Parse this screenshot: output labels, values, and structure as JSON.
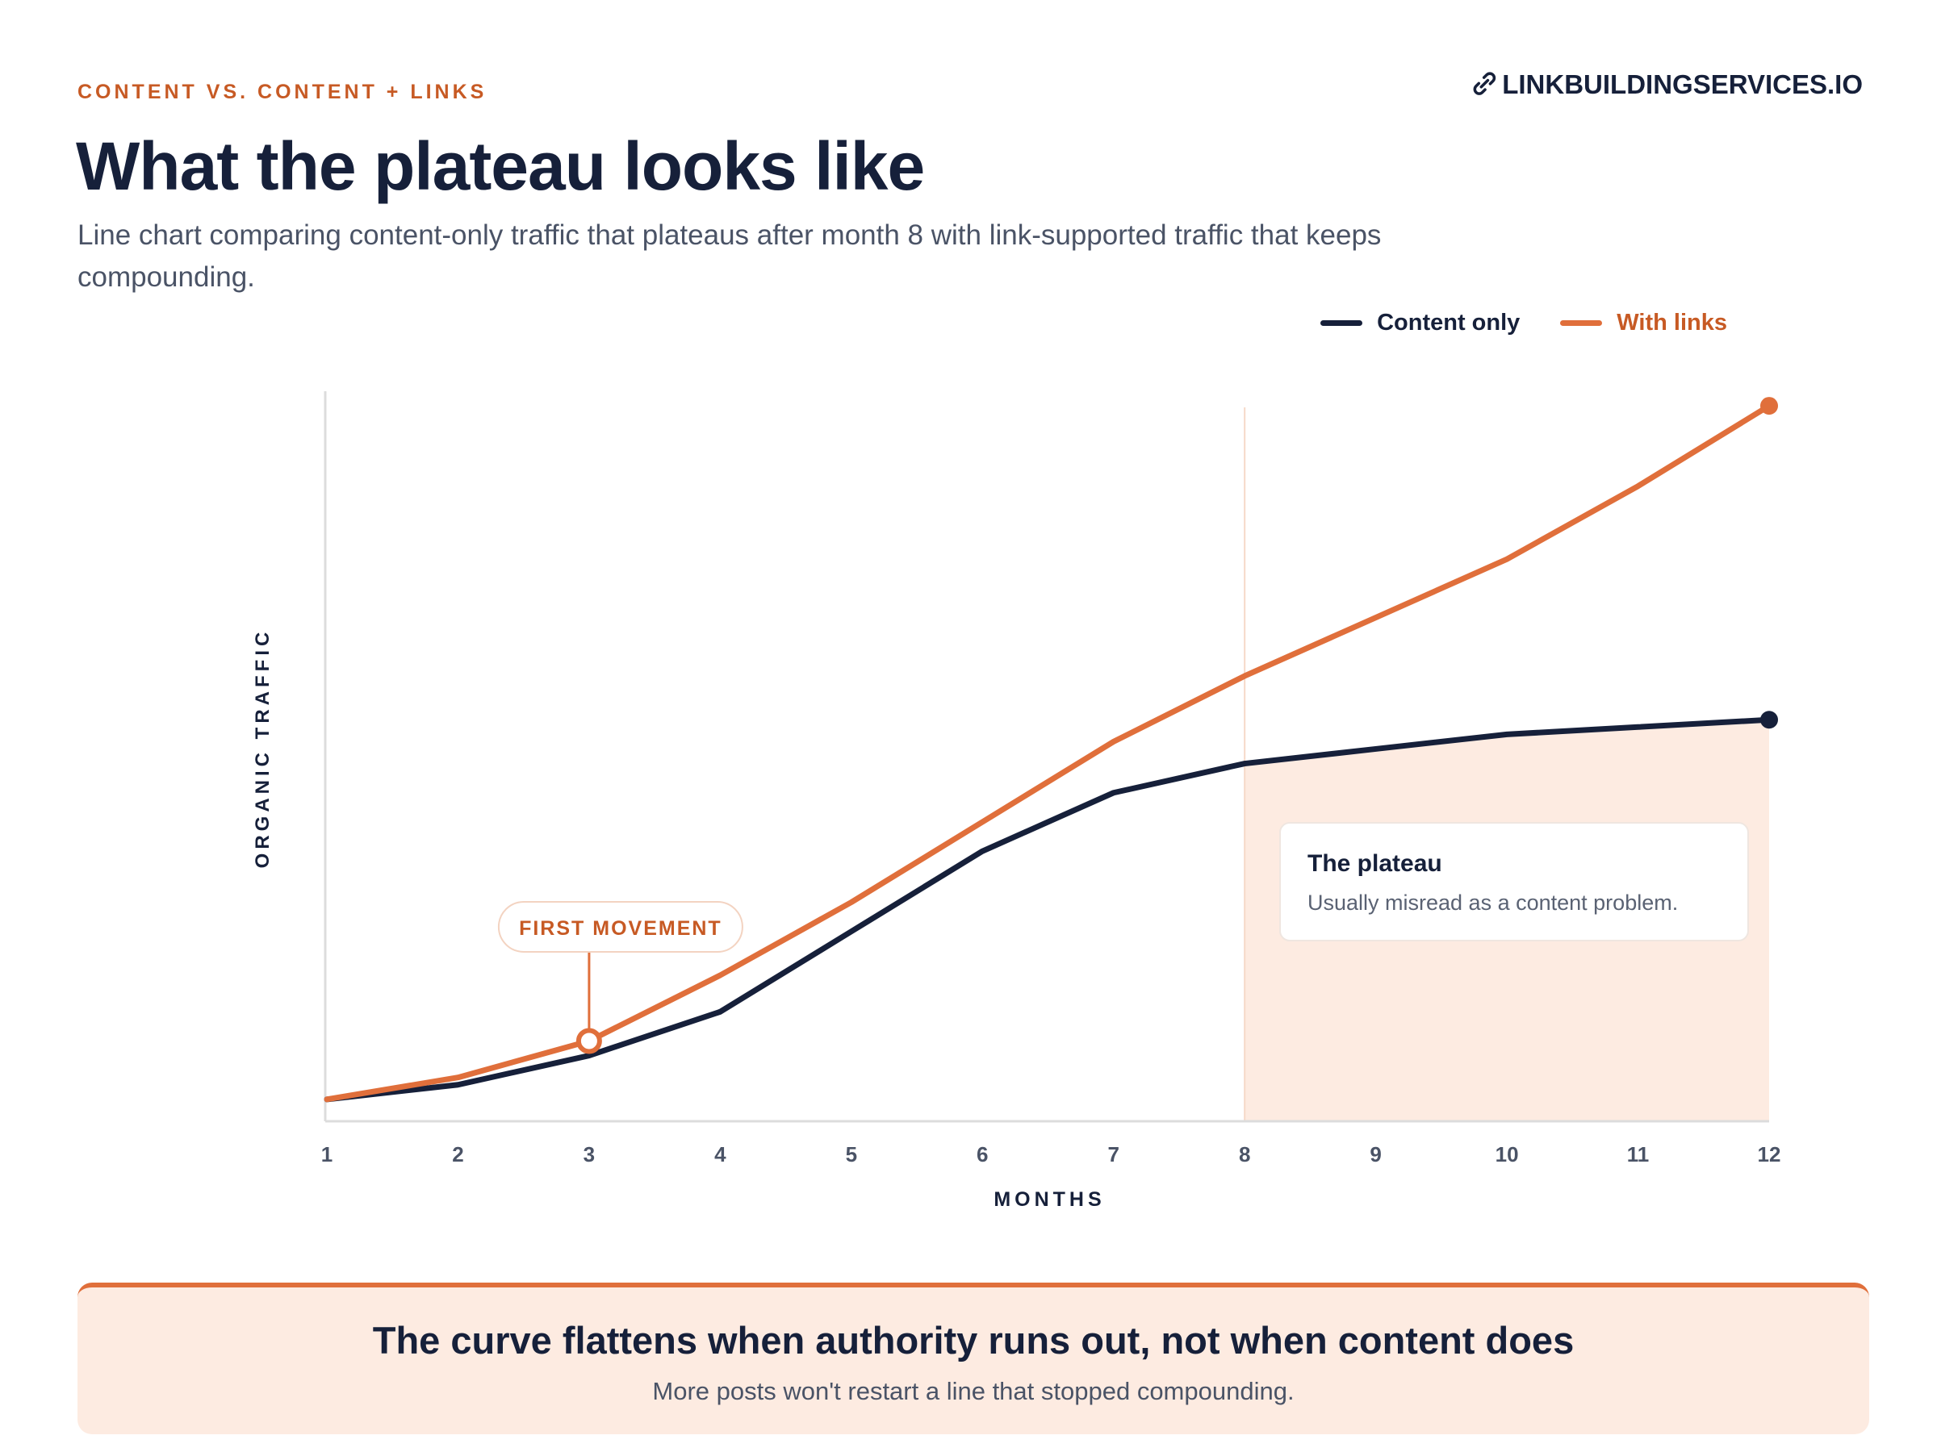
{
  "header": {
    "eyebrow": "CONTENT VS. CONTENT + LINKS",
    "brand": "LINKBUILDINGSERVICES.IO",
    "brand_icon": "link-icon",
    "title": "What the plateau looks like",
    "subtitle": "Line chart comparing content-only traffic that plateaus after month 8 with link-supported traffic that keeps compounding."
  },
  "colors": {
    "navy": "#16203a",
    "orange": "#e06f3b",
    "orange_text": "#c75a24",
    "plateau_fill": "#fdebe1",
    "axis": "#dcdcdc",
    "muted": "#4a5366"
  },
  "chart_data": {
    "type": "line",
    "xlabel": "MONTHS",
    "ylabel": "ORGANIC TRAFFIC",
    "x": [
      1,
      2,
      3,
      4,
      5,
      6,
      7,
      8,
      9,
      10,
      11,
      12
    ],
    "xlim": [
      1,
      12
    ],
    "ylim": [
      0,
      100
    ],
    "y_ticks_shown": false,
    "grid": false,
    "legend_position": "top-right",
    "series": [
      {
        "name": "Content only",
        "color": "#16203a",
        "values": [
          3,
          5,
          9,
          15,
          26,
          37,
          45,
          49,
          51,
          53,
          54,
          55
        ]
      },
      {
        "name": "With links",
        "color": "#e06f3b",
        "values": [
          3,
          6,
          11,
          20,
          30,
          41,
          52,
          61,
          69,
          77,
          87,
          98
        ]
      }
    ],
    "annotations": {
      "first_movement": {
        "label": "FIRST MOVEMENT",
        "x": 3,
        "series": "With links"
      },
      "plateau": {
        "x_start": 8,
        "x_end": 12,
        "title": "The plateau",
        "text": "Usually misread as a content problem."
      }
    }
  },
  "takeaway": {
    "headline": "The curve flattens when authority runs out, not when content does",
    "sub": "More posts won't restart a line that stopped compounding."
  }
}
